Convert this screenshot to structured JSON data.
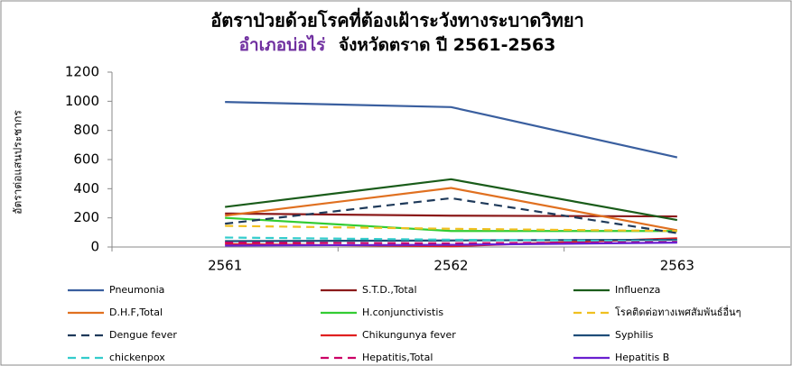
{
  "chart_data": {
    "type": "line",
    "title": "อัตราป่วยด้วยโรคที่ต้องเฝ้าระวังทางระบาดวิทยา",
    "subtitle": [
      "อำเภอบ่อไร่",
      "จังหวัดตราด ปี 2561-2563"
    ],
    "subtitle_colors": [
      "#7030a0",
      "#000000"
    ],
    "y_label": "อัตราต่อแสนประชากร",
    "categories": [
      "2561",
      "2562",
      "2563"
    ],
    "ylim": [
      0,
      1200
    ],
    "yticks": [
      0,
      200,
      400,
      600,
      800,
      1000,
      1200
    ],
    "legend": "bottom",
    "series": [
      {
        "name": "Pneumonia",
        "color": "#3a5f9f",
        "dash": false,
        "values": [
          995,
          960,
          615
        ]
      },
      {
        "name": "S.T.D.,Total",
        "color": "#8b1a1a",
        "dash": false,
        "values": [
          230,
          215,
          210
        ]
      },
      {
        "name": "Influenza",
        "color": "#1a5c1a",
        "dash": false,
        "values": [
          275,
          465,
          185
        ]
      },
      {
        "name": "D.H.F,Total",
        "color": "#e07020",
        "dash": false,
        "values": [
          215,
          405,
          115
        ]
      },
      {
        "name": "H.conjunctivistis",
        "color": "#33cc33",
        "dash": false,
        "values": [
          200,
          110,
          110
        ]
      },
      {
        "name": "โรคติดต่อทางเพศสัมพันธ์อื่นๆ",
        "color": "#f0c020",
        "dash": true,
        "values": [
          145,
          125,
          110
        ]
      },
      {
        "name": "Dengue fever",
        "color": "#1f3a5a",
        "dash": true,
        "values": [
          160,
          335,
          95
        ]
      },
      {
        "name": "Chikungunya fever",
        "color": "#e02020",
        "dash": false,
        "values": [
          20,
          5,
          60
        ]
      },
      {
        "name": "Syphilis",
        "color": "#1f4e79",
        "dash": false,
        "values": [
          40,
          45,
          50
        ]
      },
      {
        "name": "chickenpox",
        "color": "#33cccc",
        "dash": true,
        "values": [
          65,
          50,
          40
        ]
      },
      {
        "name": "Hepatitis,Total",
        "color": "#cc0066",
        "dash": true,
        "values": [
          30,
          25,
          35
        ]
      },
      {
        "name": "Hepatitis B",
        "color": "#6a1fd0",
        "dash": false,
        "values": [
          10,
          15,
          30
        ]
      }
    ]
  }
}
